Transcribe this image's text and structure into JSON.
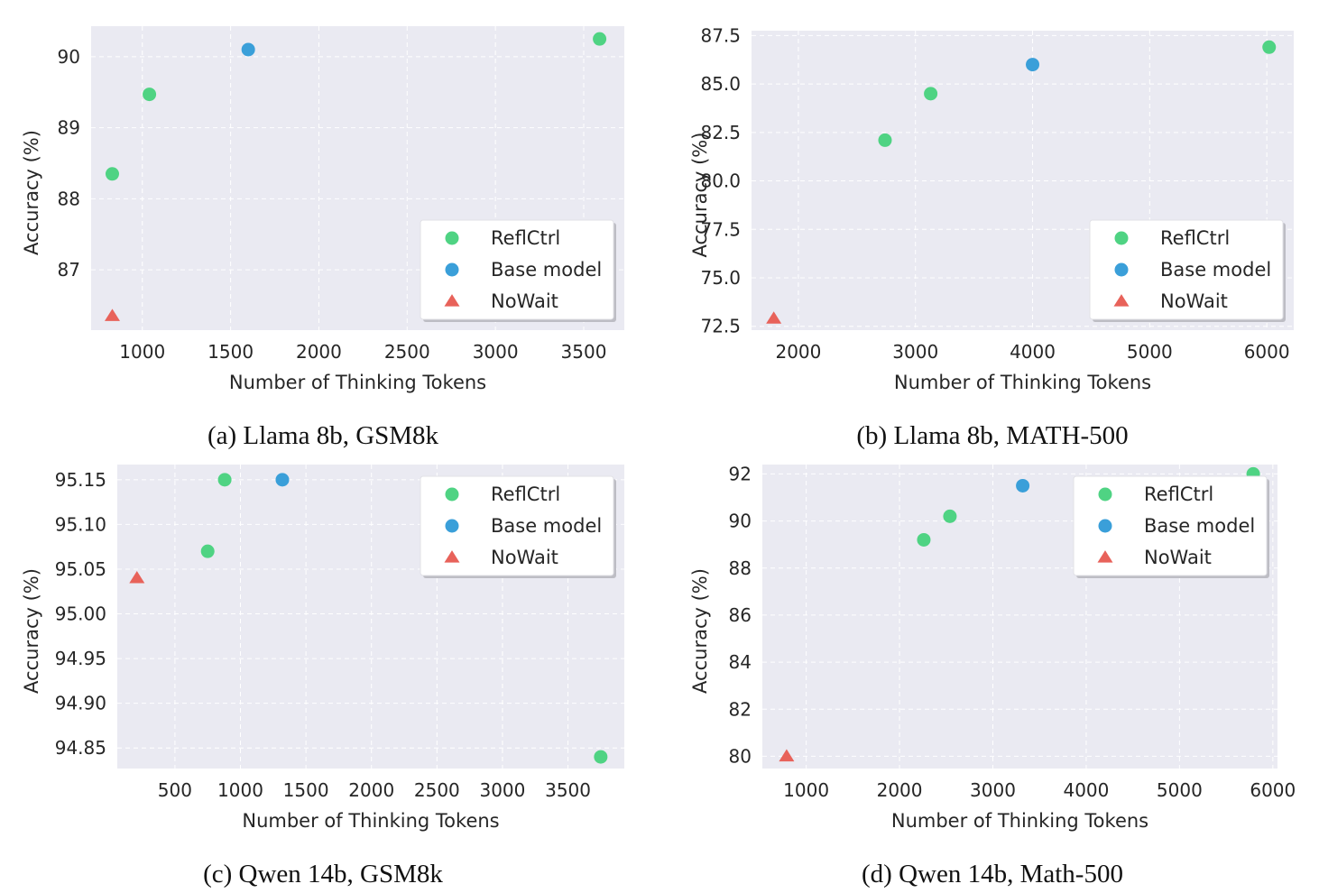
{
  "colors": {
    "reflctrl": "#4fd383",
    "base_model": "#3a9fd9",
    "nowait": "#e8625a",
    "panel_bg": "#eaeaf2",
    "grid": "#ffffff"
  },
  "chart_data": [
    {
      "type": "scatter",
      "caption": "(a) Llama 8b, GSM8k",
      "xlabel": "Number of Thinking Tokens",
      "ylabel": "Accuracy (%)",
      "xlim": [
        710,
        3730
      ],
      "ylim": [
        86.15,
        90.43
      ],
      "xticks": [
        1000,
        1500,
        2000,
        2500,
        3000,
        3500
      ],
      "yticks": [
        87,
        88,
        89,
        90
      ],
      "grid": true,
      "legend_position": "lower-right",
      "series": [
        {
          "name": "ReflCtrl",
          "marker": "circle",
          "color_key": "reflctrl",
          "x": [
            830,
            1040,
            3590
          ],
          "y": [
            88.35,
            89.47,
            90.25
          ]
        },
        {
          "name": "Base model",
          "marker": "circle",
          "color_key": "base_model",
          "x": [
            1600
          ],
          "y": [
            90.1
          ]
        },
        {
          "name": "NoWait",
          "marker": "triangle",
          "color_key": "nowait",
          "x": [
            830
          ],
          "y": [
            86.35
          ]
        }
      ]
    },
    {
      "type": "scatter",
      "caption": "(b) Llama 8b, MATH-500",
      "xlabel": "Number of Thinking Tokens",
      "ylabel": "Accuracy (%)",
      "xlim": [
        1600,
        6230
      ],
      "ylim": [
        72.3,
        87.75
      ],
      "xticks": [
        2000,
        3000,
        4000,
        5000,
        6000
      ],
      "yticks": [
        72.5,
        75.0,
        77.5,
        80.0,
        82.5,
        85.0,
        87.5
      ],
      "yticklabels": [
        "72.5",
        "75.0",
        "77.5",
        "80.0",
        "82.5",
        "85.0",
        "87.5"
      ],
      "grid": true,
      "legend_position": "lower-right",
      "series": [
        {
          "name": "ReflCtrl",
          "marker": "circle",
          "color_key": "reflctrl",
          "x": [
            2740,
            3130,
            6020
          ],
          "y": [
            82.1,
            84.5,
            86.9
          ]
        },
        {
          "name": "Base model",
          "marker": "circle",
          "color_key": "base_model",
          "x": [
            4000
          ],
          "y": [
            86.0
          ]
        },
        {
          "name": "NoWait",
          "marker": "triangle",
          "color_key": "nowait",
          "x": [
            1790
          ],
          "y": [
            72.9
          ]
        }
      ]
    },
    {
      "type": "scatter",
      "caption": "(c) Qwen 14b, GSM8k",
      "xlabel": "Number of Thinking Tokens",
      "ylabel": "Accuracy (%)",
      "xlim": [
        60,
        3930
      ],
      "ylim": [
        94.827,
        95.167
      ],
      "xticks": [
        500,
        1000,
        1500,
        2000,
        2500,
        3000,
        3500
      ],
      "yticks": [
        94.85,
        94.9,
        94.95,
        95.0,
        95.05,
        95.1,
        95.15
      ],
      "yticklabels": [
        "94.85",
        "94.90",
        "94.95",
        "95.00",
        "95.05",
        "95.10",
        "95.15"
      ],
      "grid": true,
      "legend_position": "upper-right",
      "series": [
        {
          "name": "ReflCtrl",
          "marker": "circle",
          "color_key": "reflctrl",
          "x": [
            880,
            750,
            3750
          ],
          "y": [
            95.15,
            95.07,
            94.84
          ]
        },
        {
          "name": "Base model",
          "marker": "circle",
          "color_key": "base_model",
          "x": [
            1320
          ],
          "y": [
            95.15
          ]
        },
        {
          "name": "NoWait",
          "marker": "triangle",
          "color_key": "nowait",
          "x": [
            210
          ],
          "y": [
            95.04
          ]
        }
      ]
    },
    {
      "type": "scatter",
      "caption": "(d) Qwen 14b, Math-500",
      "xlabel": "Number of Thinking Tokens",
      "ylabel": "Accuracy (%)",
      "xlim": [
        530,
        6050
      ],
      "ylim": [
        79.48,
        92.4
      ],
      "xticks": [
        1000,
        2000,
        3000,
        4000,
        5000,
        6000
      ],
      "yticks": [
        80,
        82,
        84,
        86,
        88,
        90,
        92
      ],
      "grid": true,
      "legend_position": "upper-right",
      "series": [
        {
          "name": "ReflCtrl",
          "marker": "circle",
          "color_key": "reflctrl",
          "x": [
            2260,
            2540,
            5790
          ],
          "y": [
            89.2,
            90.2,
            92.0
          ]
        },
        {
          "name": "Base model",
          "marker": "circle",
          "color_key": "base_model",
          "x": [
            3320
          ],
          "y": [
            91.5
          ]
        },
        {
          "name": "NoWait",
          "marker": "triangle",
          "color_key": "nowait",
          "x": [
            790
          ],
          "y": [
            80.0
          ]
        }
      ]
    }
  ]
}
